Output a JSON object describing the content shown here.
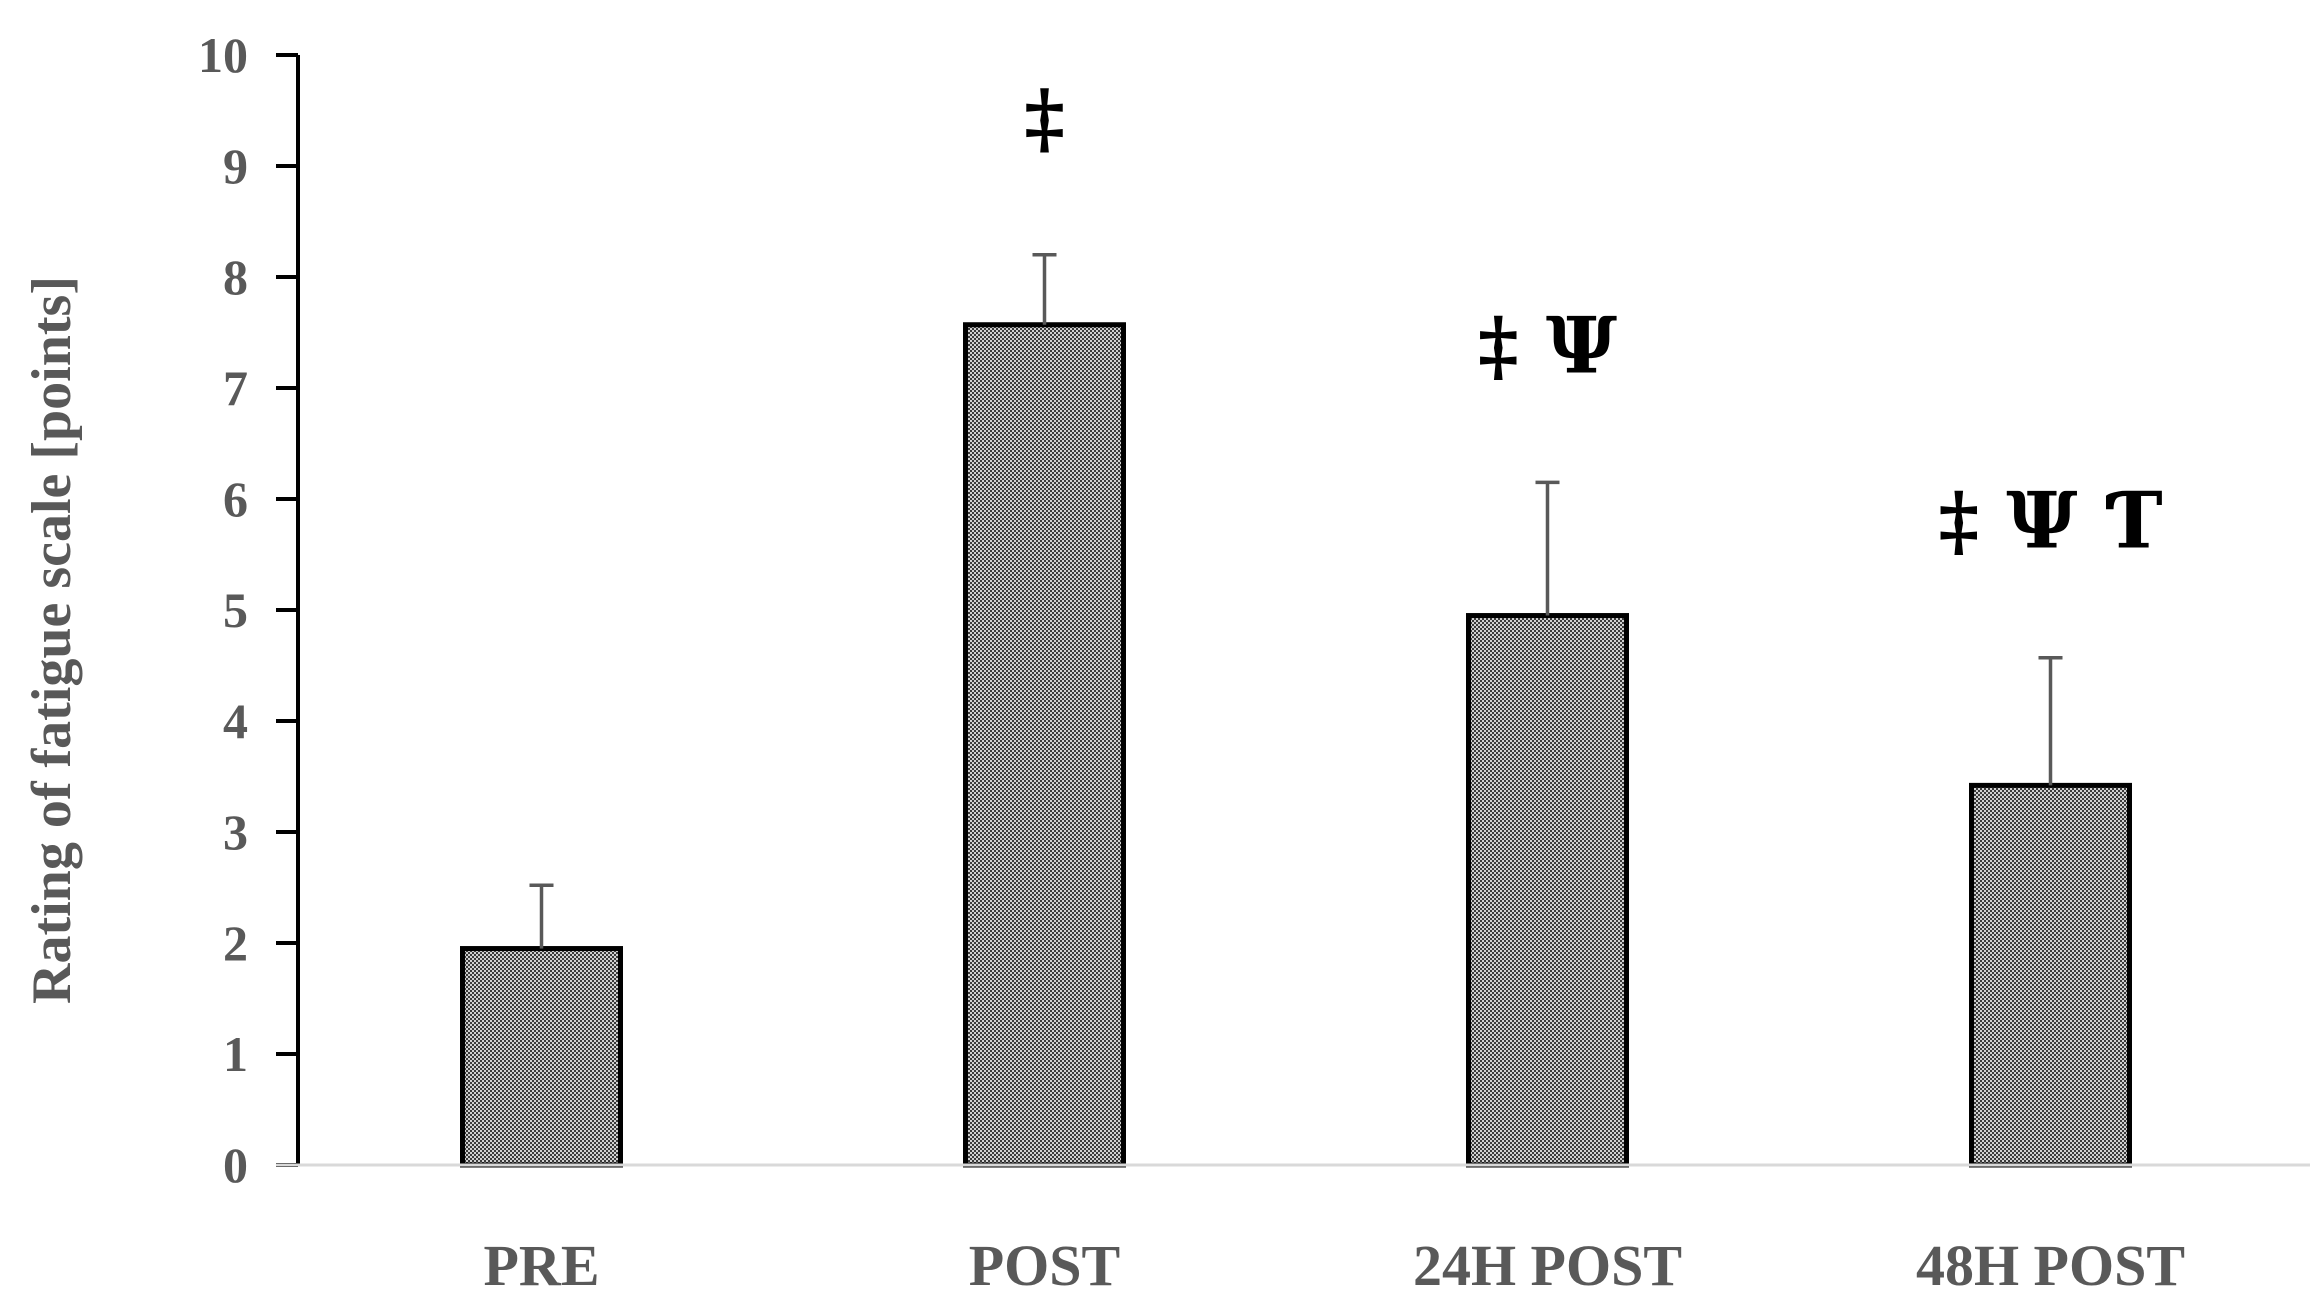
{
  "chart_data": {
    "type": "bar",
    "categories": [
      "PRE",
      "POST",
      "24H POST",
      "48H POST"
    ],
    "series": [
      {
        "values": [
          1.95,
          7.57,
          4.95,
          3.42
        ],
        "error": [
          0.57,
          0.63,
          1.2,
          1.15
        ]
      }
    ],
    "annotations": [
      "",
      "‡",
      "‡ Ψ",
      "‡ Ψ Ƭ"
    ],
    "title": "",
    "xlabel": "",
    "ylabel": "Rating of fatigue scale [points]",
    "ylim": [
      0,
      10
    ],
    "yticks": [
      "0",
      "1",
      "2",
      "3",
      "4",
      "5",
      "6",
      "7",
      "8",
      "9",
      "10"
    ],
    "grid": false,
    "legend": "none",
    "colors": {
      "bar_fill": "#a6a6a6",
      "bar_edge": "#000000",
      "error_bar": "#595959",
      "axis": "#000000",
      "text": "#595959"
    }
  }
}
